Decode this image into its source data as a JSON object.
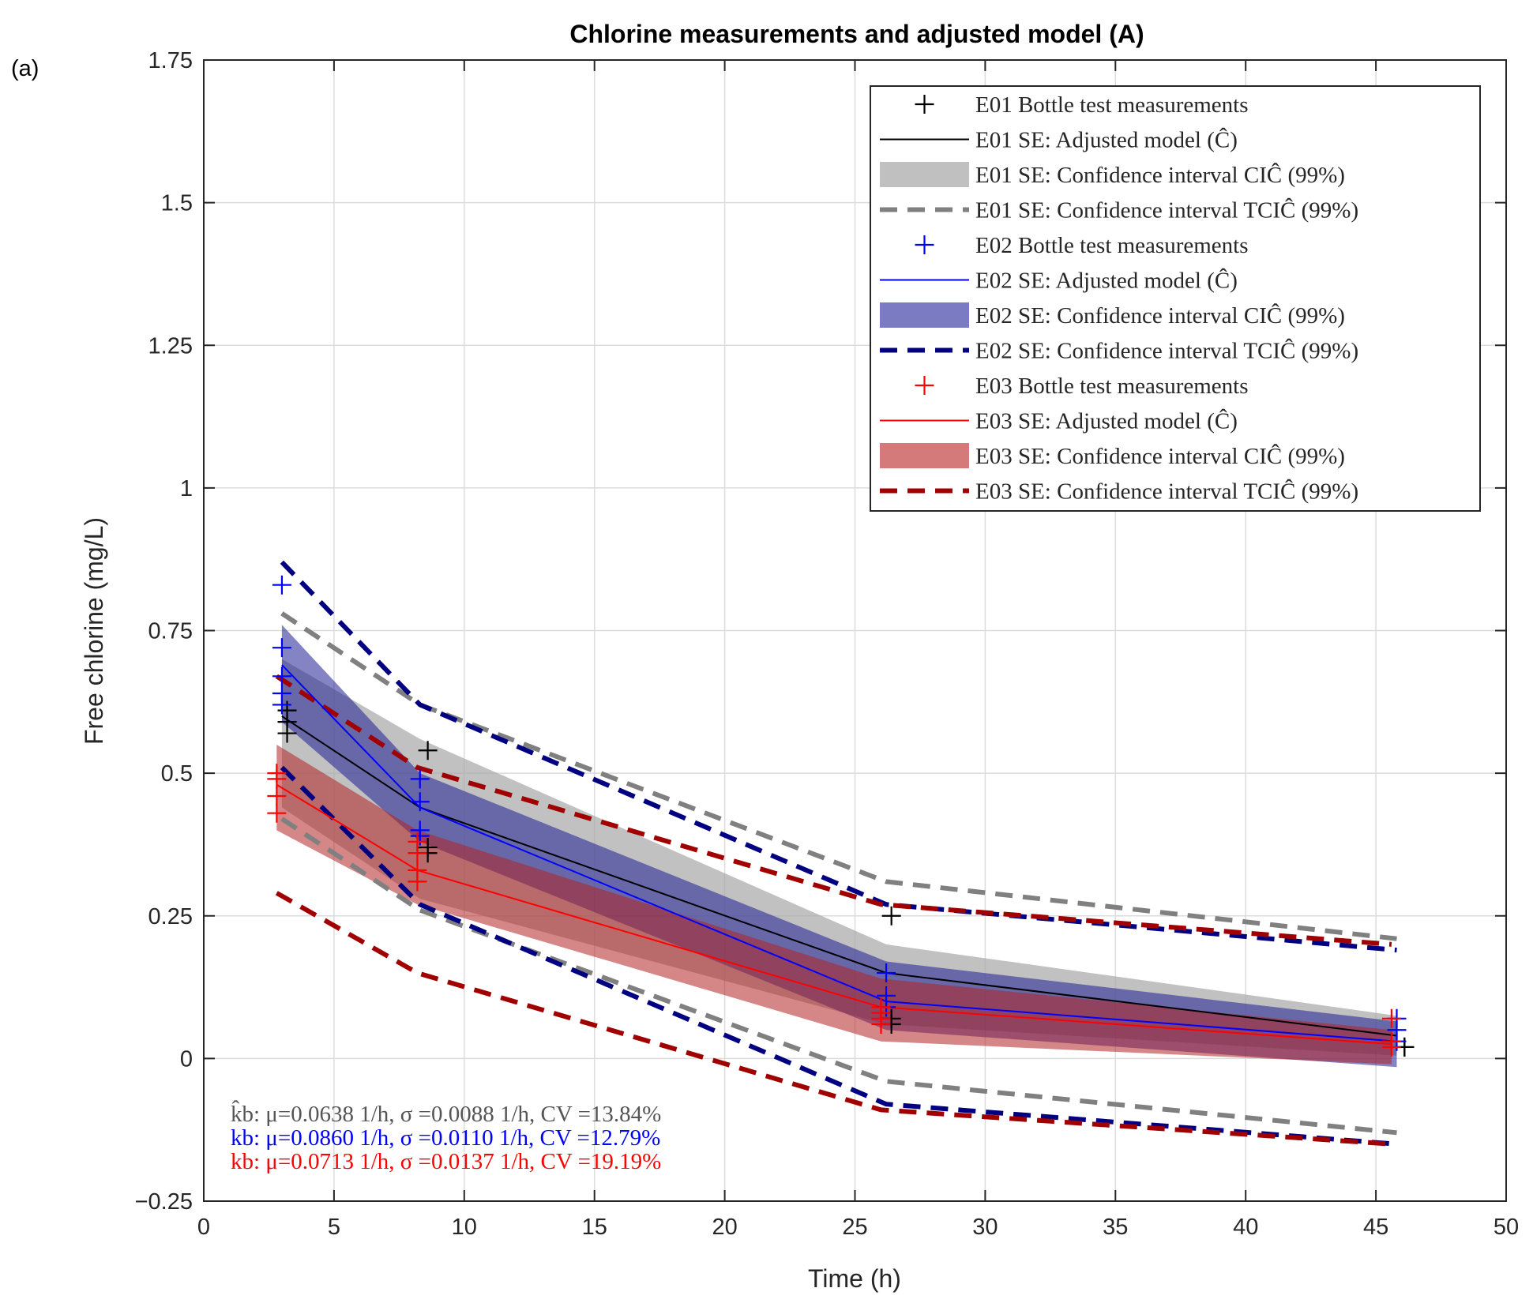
{
  "chart_data": {
    "type": "line",
    "panel_label": "(a)",
    "title": "Chlorine measurements and adjusted model (A)",
    "xlabel": "Time (h)",
    "ylabel": "Free chlorine (mg/L)",
    "xlim": [
      0,
      50
    ],
    "ylim": [
      -0.25,
      1.75
    ],
    "xticks": [
      0,
      5,
      10,
      15,
      20,
      25,
      30,
      35,
      40,
      45,
      50
    ],
    "yticks": [
      -0.25,
      0,
      0.25,
      0.5,
      0.75,
      1,
      1.25,
      1.5,
      1.75
    ],
    "xtick_labels": [
      "0",
      "5",
      "10",
      "15",
      "20",
      "25",
      "30",
      "35",
      "40",
      "45",
      "50"
    ],
    "ytick_labels": [
      "−0.25",
      "0",
      "0.25",
      "0.5",
      "0.75",
      "1",
      "1.25",
      "1.5",
      "1.75"
    ],
    "grid": true,
    "legend_position": "top-right",
    "series": [
      {
        "name": "E01",
        "line_color": "#000000",
        "band_color": "#a6a6a6",
        "tci_color": "#808080",
        "measurements": {
          "x": [
            3.2,
            3.2,
            3.2,
            8.6,
            8.6,
            8.6,
            26.4,
            26.4,
            26.4,
            46.1,
            46.1,
            46.1
          ],
          "y": [
            0.61,
            0.59,
            0.57,
            0.54,
            0.37,
            0.36,
            0.25,
            0.07,
            0.06,
            0.02,
            0.02,
            0.02
          ]
        },
        "model": {
          "x": [
            3.0,
            8.3,
            26.2,
            45.8
          ],
          "y": [
            0.6,
            0.44,
            0.15,
            0.04
          ]
        },
        "ci": {
          "x": [
            3.0,
            8.3,
            26.2,
            45.8
          ],
          "lower": [
            0.44,
            0.28,
            0.06,
            0.005
          ],
          "upper": [
            0.7,
            0.56,
            0.2,
            0.075
          ]
        },
        "tci": {
          "x": [
            3.0,
            8.3,
            26.2,
            45.8
          ],
          "lower": [
            0.42,
            0.26,
            -0.04,
            -0.13
          ],
          "upper": [
            0.78,
            0.62,
            0.31,
            0.21
          ]
        }
      },
      {
        "name": "E02",
        "line_color": "#0000ff",
        "band_color": "#1f1f96",
        "tci_color": "#000080",
        "measurements": {
          "x": [
            3.0,
            3.0,
            3.0,
            3.0,
            3.0,
            8.3,
            8.3,
            8.3,
            8.3,
            26.2,
            26.2,
            26.2,
            45.8,
            45.8,
            45.8
          ],
          "y": [
            0.83,
            0.72,
            0.67,
            0.64,
            0.62,
            0.49,
            0.45,
            0.4,
            0.39,
            0.15,
            0.11,
            0.09,
            0.07,
            0.05,
            0.03
          ]
        },
        "model": {
          "x": [
            3.0,
            8.3,
            26.2,
            45.8
          ],
          "y": [
            0.69,
            0.44,
            0.1,
            0.03
          ]
        },
        "ci": {
          "x": [
            3.0,
            8.3,
            26.2,
            45.8
          ],
          "lower": [
            0.59,
            0.38,
            0.05,
            -0.015
          ],
          "upper": [
            0.76,
            0.5,
            0.17,
            0.065
          ]
        },
        "tci": {
          "x": [
            3.0,
            8.3,
            26.2,
            45.8
          ],
          "lower": [
            0.51,
            0.27,
            -0.08,
            -0.15
          ],
          "upper": [
            0.87,
            0.62,
            0.27,
            0.19
          ]
        }
      },
      {
        "name": "E03",
        "line_color": "#ff0000",
        "band_color": "#b22222",
        "tci_color": "#a00000",
        "measurements": {
          "x": [
            2.8,
            2.8,
            2.8,
            2.8,
            8.2,
            8.2,
            8.2,
            8.2,
            26.0,
            26.0,
            26.0,
            26.0,
            45.6,
            45.6,
            45.6
          ],
          "y": [
            0.5,
            0.49,
            0.46,
            0.43,
            0.38,
            0.36,
            0.33,
            0.31,
            0.09,
            0.08,
            0.07,
            0.06,
            0.07,
            0.03,
            0.02
          ]
        },
        "model": {
          "x": [
            2.8,
            8.2,
            26.0,
            45.6
          ],
          "y": [
            0.48,
            0.33,
            0.09,
            0.025
          ]
        },
        "ci": {
          "x": [
            2.8,
            8.2,
            26.0,
            45.6
          ],
          "lower": [
            0.4,
            0.27,
            0.03,
            -0.01
          ],
          "upper": [
            0.55,
            0.4,
            0.14,
            0.05
          ]
        },
        "tci": {
          "x": [
            2.8,
            8.2,
            26.0,
            45.6
          ],
          "lower": [
            0.29,
            0.15,
            -0.09,
            -0.15
          ],
          "upper": [
            0.67,
            0.51,
            0.27,
            0.2
          ]
        }
      }
    ],
    "legend": [
      {
        "kind": "marker",
        "color": "#000000",
        "label": "E01 Bottle test measurements"
      },
      {
        "kind": "line",
        "color": "#000000",
        "label": "E01 SE: Adjusted model (Ĉ)"
      },
      {
        "kind": "band",
        "color": "#c0c0c0",
        "label": "E01 SE: Confidence interval CIĈ (99%)"
      },
      {
        "kind": "dash",
        "color": "#808080",
        "label": "E01 SE: Confidence interval TCIĈ (99%)"
      },
      {
        "kind": "marker",
        "color": "#0000ff",
        "label": "E02 Bottle test measurements"
      },
      {
        "kind": "line",
        "color": "#0000ff",
        "label": "E02 SE: Adjusted model (Ĉ)"
      },
      {
        "kind": "band",
        "color": "#7b7bc4",
        "label": "E02 SE: Confidence interval CIĈ (99%)"
      },
      {
        "kind": "dash",
        "color": "#000080",
        "label": "E02 SE: Confidence interval TCIĈ (99%)"
      },
      {
        "kind": "marker",
        "color": "#ff0000",
        "label": "E03 Bottle test measurements"
      },
      {
        "kind": "line",
        "color": "#ff0000",
        "label": "E03 SE: Adjusted model (Ĉ)"
      },
      {
        "kind": "band",
        "color": "#d47a7a",
        "label": "E03 SE: Confidence interval CIĈ (99%)"
      },
      {
        "kind": "dash",
        "color": "#a00000",
        "label": "E03 SE: Confidence interval TCIĈ (99%)"
      }
    ],
    "annotations": [
      {
        "text": "k̂b: μ=0.0638 1/h, σ =0.0088 1/h, CV =13.84%",
        "color": "#555555"
      },
      {
        "text": "kb: μ=0.0860 1/h, σ =0.0110 1/h, CV =12.79%",
        "color": "#0000ff"
      },
      {
        "text": "kb: μ=0.0713 1/h, σ =0.0137 1/h, CV =19.19%",
        "color": "#ff0000"
      }
    ]
  }
}
